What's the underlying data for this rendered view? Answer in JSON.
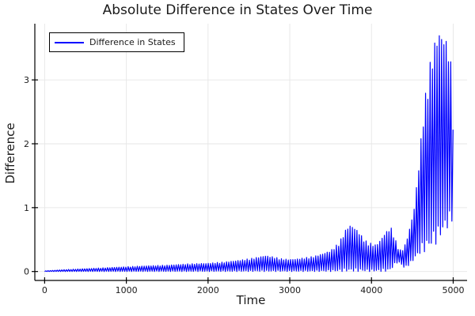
{
  "chart_data": {
    "type": "line",
    "title": "Absolute Difference in States Over Time",
    "xlabel": "Time",
    "ylabel": "Difference",
    "legend_position": "top-left",
    "grid": true,
    "background_color": "#ffffff",
    "axis_color": "#000000",
    "grid_color": "#e6e6e6",
    "text_color": "#1a1a1a",
    "xlim": [
      -120,
      5170
    ],
    "ylim": [
      -0.14,
      3.88
    ],
    "xticks": [
      0,
      1000,
      2000,
      3000,
      4000,
      5000
    ],
    "yticks": [
      0,
      1,
      2,
      3
    ],
    "series": [
      {
        "name": "Difference in States",
        "color": "#0000ff",
        "description": "Rapid oscillation |x1(t)-x2(t)| between lower and upper envelope; amplitude grows roughly exponentially with local bumps near t=2700, t=3740, t=4240, a collapse near t=4330, then explosive growth peaking ~3.8 near t=4830"
      }
    ],
    "oscillation_period": 28,
    "envelope": {
      "t": [
        0,
        250,
        500,
        750,
        1000,
        1250,
        1500,
        1750,
        2000,
        2200,
        2400,
        2550,
        2700,
        2800,
        2900,
        3000,
        3100,
        3200,
        3300,
        3400,
        3500,
        3600,
        3650,
        3700,
        3740,
        3780,
        3850,
        3900,
        3950,
        4000,
        4050,
        4100,
        4150,
        4200,
        4240,
        4280,
        4320,
        4360,
        4400,
        4440,
        4480,
        4520,
        4560,
        4600,
        4640,
        4680,
        4720,
        4760,
        4800,
        4830,
        4860,
        4890,
        4920,
        4950,
        4975,
        5000
      ],
      "hi": [
        0.01,
        0.03,
        0.045,
        0.06,
        0.075,
        0.09,
        0.1,
        0.12,
        0.13,
        0.15,
        0.18,
        0.21,
        0.25,
        0.23,
        0.2,
        0.19,
        0.2,
        0.22,
        0.24,
        0.28,
        0.33,
        0.45,
        0.57,
        0.7,
        0.73,
        0.71,
        0.62,
        0.52,
        0.46,
        0.44,
        0.42,
        0.48,
        0.58,
        0.66,
        0.69,
        0.55,
        0.4,
        0.33,
        0.38,
        0.55,
        0.75,
        1.0,
        1.45,
        2.0,
        2.6,
        2.95,
        3.3,
        3.55,
        3.74,
        3.79,
        3.76,
        3.72,
        3.65,
        3.5,
        3.25,
        2.4
      ],
      "lo": [
        0,
        0,
        0,
        0,
        0,
        0,
        0,
        0,
        0,
        0,
        0,
        0,
        0,
        0,
        0,
        0,
        0,
        0,
        0,
        0,
        0,
        0,
        0,
        0,
        0,
        0,
        0,
        0,
        0,
        0,
        0,
        0,
        0,
        0,
        0.02,
        0.1,
        0.14,
        0.12,
        0.05,
        0.08,
        0.12,
        0.18,
        0.22,
        0.28,
        0.3,
        0.32,
        0.36,
        0.4,
        0.44,
        0.48,
        0.55,
        0.6,
        0.65,
        0.72,
        0.76,
        0.8
      ]
    }
  }
}
